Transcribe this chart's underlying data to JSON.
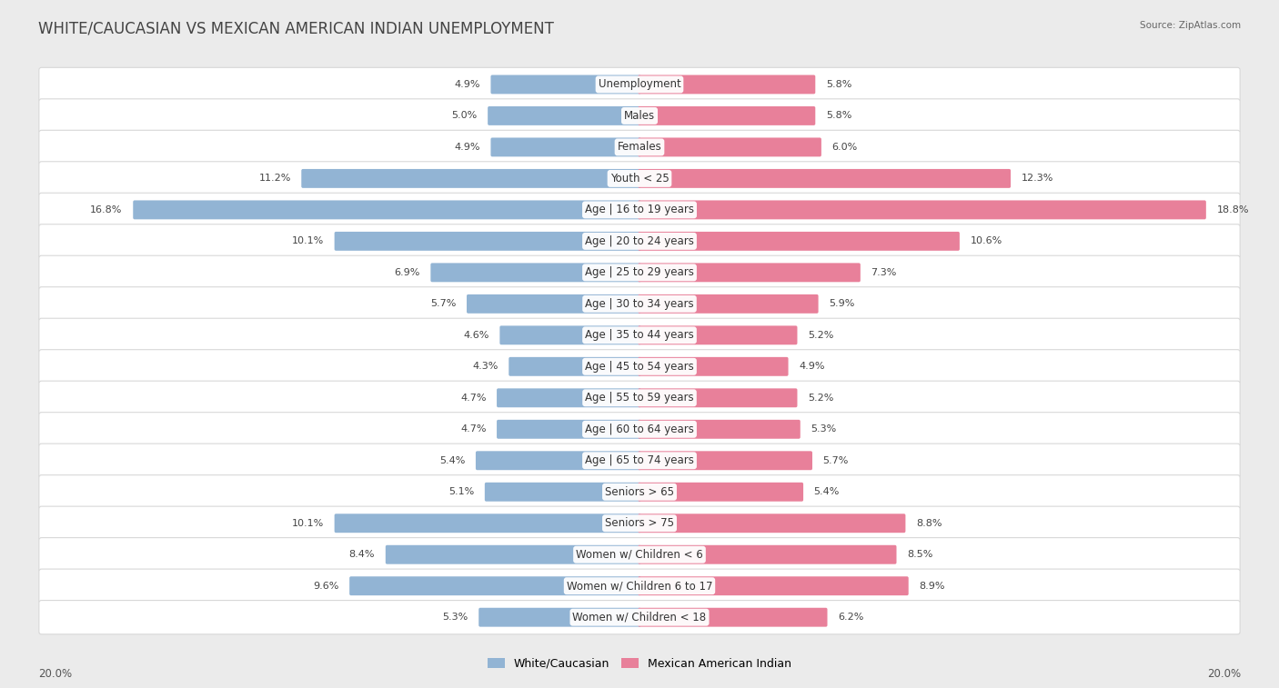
{
  "title": "WHITE/CAUCASIAN VS MEXICAN AMERICAN INDIAN UNEMPLOYMENT",
  "source": "Source: ZipAtlas.com",
  "categories": [
    "Unemployment",
    "Males",
    "Females",
    "Youth < 25",
    "Age | 16 to 19 years",
    "Age | 20 to 24 years",
    "Age | 25 to 29 years",
    "Age | 30 to 34 years",
    "Age | 35 to 44 years",
    "Age | 45 to 54 years",
    "Age | 55 to 59 years",
    "Age | 60 to 64 years",
    "Age | 65 to 74 years",
    "Seniors > 65",
    "Seniors > 75",
    "Women w/ Children < 6",
    "Women w/ Children 6 to 17",
    "Women w/ Children < 18"
  ],
  "left_values": [
    4.9,
    5.0,
    4.9,
    11.2,
    16.8,
    10.1,
    6.9,
    5.7,
    4.6,
    4.3,
    4.7,
    4.7,
    5.4,
    5.1,
    10.1,
    8.4,
    9.6,
    5.3
  ],
  "right_values": [
    5.8,
    5.8,
    6.0,
    12.3,
    18.8,
    10.6,
    7.3,
    5.9,
    5.2,
    4.9,
    5.2,
    5.3,
    5.7,
    5.4,
    8.8,
    8.5,
    8.9,
    6.2
  ],
  "left_color": "#92b4d4",
  "right_color": "#e8809a",
  "left_label": "White/Caucasian",
  "right_label": "Mexican American Indian",
  "axis_max": 20.0,
  "axis_label_left": "20.0%",
  "axis_label_right": "20.0%",
  "bg_color": "#ebebeb",
  "row_bg_color": "#ffffff",
  "label_fontsize": 8.5,
  "value_fontsize": 8.0,
  "title_fontsize": 12
}
